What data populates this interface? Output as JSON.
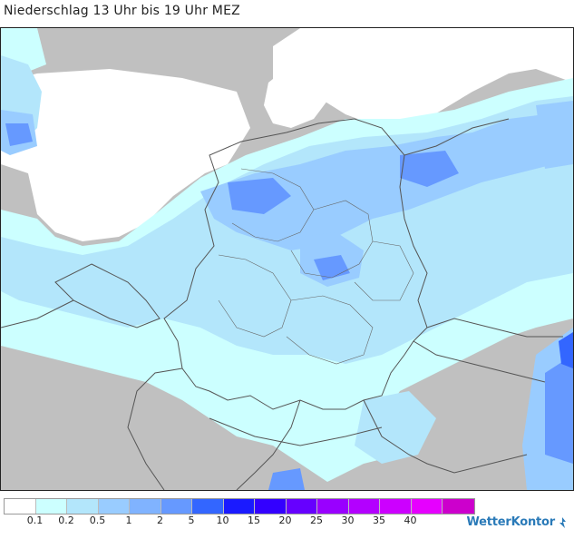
{
  "title": "Niederschlag 13 Uhr bis 19 Uhr MEZ",
  "logo_text": "WetterKontor",
  "legend": {
    "colors": [
      "#ffffff",
      "#ccffff",
      "#b3e6fb",
      "#99ccff",
      "#80b3ff",
      "#6699ff",
      "#3366ff",
      "#1a1aff",
      "#3300ff",
      "#6600ff",
      "#9900ff",
      "#b300ff",
      "#cc00ff",
      "#e600ff",
      "#cc00cc"
    ],
    "labels": [
      "0.1",
      "0.2",
      "0.5",
      "1",
      "2",
      "5",
      "10",
      "15",
      "20",
      "25",
      "30",
      "35",
      "40"
    ]
  },
  "palette": {
    "land": "#c0c0c0",
    "sea": "#ffffff",
    "light": "#ccffff",
    "pale": "#b3e6fb",
    "medium": "#99ccff",
    "strong": "#6699ff",
    "deep": "#3366ff",
    "border": "#555555"
  }
}
